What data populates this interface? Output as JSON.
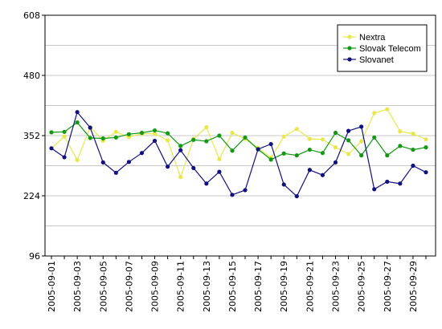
{
  "chart_data": {
    "type": "line",
    "title": "",
    "xlabel": "",
    "ylabel": "",
    "ylim": [
      96,
      608
    ],
    "yticks": [
      96,
      224,
      352,
      480,
      608
    ],
    "grid": true,
    "legend_position": "top-right",
    "x": [
      "2005-09-01",
      "2005-09-02",
      "2005-09-03",
      "2005-09-04",
      "2005-09-05",
      "2005-09-06",
      "2005-09-07",
      "2005-09-08",
      "2005-09-09",
      "2005-09-10",
      "2005-09-11",
      "2005-09-12",
      "2005-09-13",
      "2005-09-14",
      "2005-09-15",
      "2005-09-16",
      "2005-09-17",
      "2005-09-18",
      "2005-09-19",
      "2005-09-20",
      "2005-09-21",
      "2005-09-22",
      "2005-09-23",
      "2005-09-24",
      "2005-09-25",
      "2005-09-26",
      "2005-09-27",
      "2005-09-28",
      "2005-09-29",
      "2005-09-30"
    ],
    "x_tick_labels": [
      "2005-09-01",
      "2005-09-03",
      "2005-09-05",
      "2005-09-07",
      "2005-09-09",
      "2005-09-11",
      "2005-09-13",
      "2005-09-15",
      "2005-09-17",
      "2005-09-19",
      "2005-09-21",
      "2005-09-23",
      "2005-09-25",
      "2005-09-27",
      "2005-09-29"
    ],
    "series": [
      {
        "name": "Nextra",
        "color": "#e8e84a",
        "values": [
          325,
          350,
          300,
          370,
          341,
          360,
          349,
          356,
          356,
          342,
          264,
          345,
          370,
          302,
          358,
          345,
          326,
          305,
          350,
          366,
          345,
          344,
          327,
          313,
          340,
          400,
          408,
          361,
          356,
          344
        ]
      },
      {
        "name": "Slovak Telecom",
        "color": "#129a12",
        "values": [
          359,
          360,
          380,
          347,
          346,
          348,
          355,
          358,
          363,
          357,
          330,
          343,
          340,
          352,
          320,
          348,
          323,
          301,
          314,
          310,
          322,
          315,
          358,
          342,
          310,
          348,
          310,
          330,
          322,
          327
        ]
      },
      {
        "name": "Slovanet",
        "color": "#101080",
        "values": [
          325,
          306,
          402,
          369,
          295,
          273,
          296,
          315,
          341,
          286,
          321,
          283,
          250,
          275,
          226,
          236,
          323,
          334,
          248,
          223,
          279,
          268,
          295,
          362,
          371,
          238,
          254,
          250,
          288,
          274
        ]
      }
    ]
  }
}
